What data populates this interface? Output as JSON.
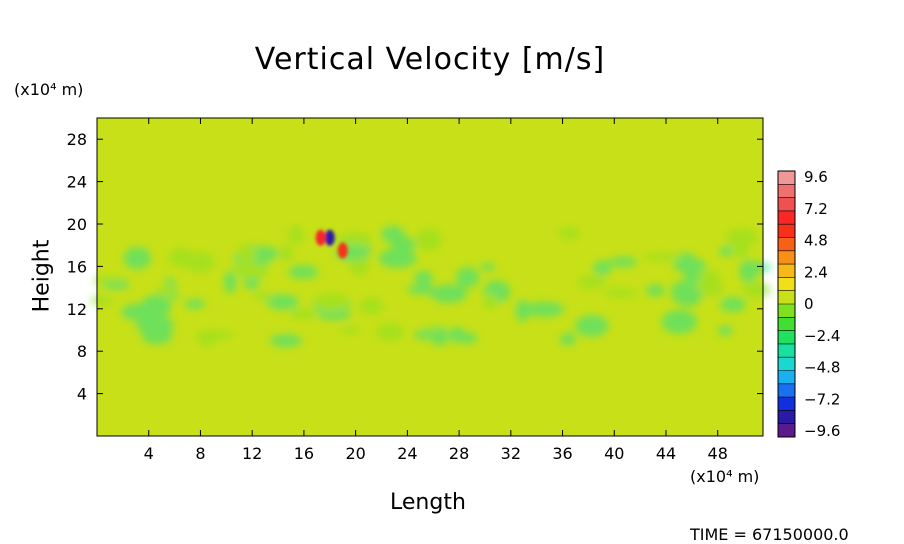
{
  "chart_data": {
    "type": "heatmap",
    "title": "Vertical Velocity [m/s]",
    "xlabel": "Length",
    "ylabel": "Height",
    "x_unit": "(x10⁴ m)",
    "y_unit": "(x10⁴ m)",
    "xlim": [
      0,
      51.5
    ],
    "ylim": [
      0,
      30
    ],
    "x_ticks": [
      "4",
      "8",
      "12",
      "16",
      "20",
      "24",
      "28",
      "32",
      "36",
      "40",
      "44",
      "48"
    ],
    "y_ticks": [
      "4",
      "8",
      "12",
      "16",
      "20",
      "24",
      "28"
    ],
    "colorbar": {
      "labels": [
        "9.6",
        "7.2",
        "4.8",
        "2.4",
        "0",
        "−2.4",
        "−4.8",
        "−7.2",
        "−9.6"
      ],
      "range": [
        -9.6,
        9.6
      ],
      "colors": [
        "#5a1a8c",
        "#2a1aa8",
        "#1030e0",
        "#1a70f0",
        "#1ab0f0",
        "#18d8d0",
        "#18e0a0",
        "#20e060",
        "#40e030",
        "#80e020",
        "#c8e018",
        "#f0e018",
        "#f8b818",
        "#f89018",
        "#f86018",
        "#f83018",
        "#f82828",
        "#f05050",
        "#f07070",
        "#f09898"
      ]
    },
    "field": {
      "background_value": 0,
      "features": [
        {
          "x": 18,
          "y": 18.7,
          "value": -8.5
        },
        {
          "x": 19,
          "y": 17.5,
          "value": 5.0
        },
        {
          "x": 17.3,
          "y": 18.7,
          "value": 6.5
        }
      ]
    }
  },
  "footer": {
    "time_label": "TIME = 67150000.0"
  }
}
